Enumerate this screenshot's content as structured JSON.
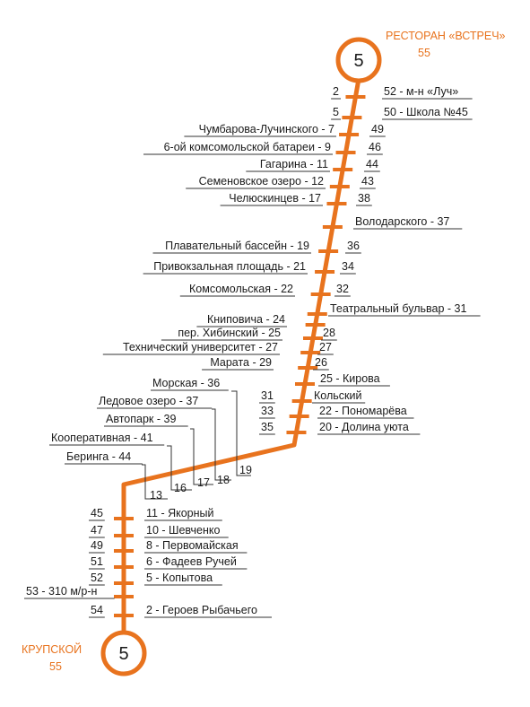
{
  "colors": {
    "route": "#e8731e",
    "text": "#1a1a1a",
    "terminal_text": "#e8731e"
  },
  "route_number": "5",
  "terminals": {
    "top": {
      "name": "РЕСТОРАН «ВСТРЕЧ»",
      "number": "55"
    },
    "bottom": {
      "name": "КРУПСКОЙ",
      "number": "55"
    }
  },
  "stops": [
    {
      "outbound": "2",
      "inbound": "52 - м-н «Луч»"
    },
    {
      "outbound": "5",
      "inbound": "50 - Школа №45"
    },
    {
      "outbound": "Чумбарова-Лучинского - 7",
      "inbound": "49"
    },
    {
      "outbound": "6-ой комсомольской батареи - 9",
      "inbound": "46"
    },
    {
      "outbound": "Гагарина - 11",
      "inbound": "44"
    },
    {
      "outbound": "Семеновское озеро - 12",
      "inbound": "43"
    },
    {
      "outbound": "Челюскинцев - 17",
      "inbound": "38"
    },
    {
      "outbound": "",
      "inbound": "Володарского - 37"
    },
    {
      "outbound": "Плавательный бассейн - 19",
      "inbound": "36"
    },
    {
      "outbound": "Привокзальная площадь - 21",
      "inbound": "34"
    },
    {
      "outbound": "Комсомольская - 22",
      "inbound": "32"
    },
    {
      "outbound": "",
      "inbound": "Театральный бульвар - 31"
    },
    {
      "outbound": "Книповича - 24",
      "inbound": ""
    },
    {
      "outbound": "пер. Хибинский - 25",
      "inbound": "28"
    },
    {
      "outbound": "Технический университет - 27",
      "inbound": "27"
    },
    {
      "outbound": "Марата - 29",
      "inbound": "26"
    },
    {
      "outbound": "",
      "inbound": "25 - Кирова"
    },
    {
      "outbound": "31",
      "inbound": "Кольский"
    },
    {
      "outbound": "33",
      "inbound": "22 - Пономарёва"
    },
    {
      "outbound": "35",
      "inbound": "20 - Долина уюта"
    },
    {
      "outbound": "Морская - 36",
      "inbound": "19"
    },
    {
      "outbound": "Ледовое озеро - 37",
      "inbound": "18"
    },
    {
      "outbound": "Автопарк - 39",
      "inbound": "17"
    },
    {
      "outbound": "Кооперативная - 41",
      "inbound": "16"
    },
    {
      "outbound": "Беринга - 44",
      "inbound": "13"
    },
    {
      "outbound": "45",
      "inbound": "11 - Якорный"
    },
    {
      "outbound": "47",
      "inbound": "10 - Шевченко"
    },
    {
      "outbound": "49",
      "inbound": "8 - Первомайская"
    },
    {
      "outbound": "51",
      "inbound": "6 - Фадеев Ручей"
    },
    {
      "outbound": "52",
      "inbound": "5 - Копытова"
    },
    {
      "outbound": "53 - 310 м/р-н",
      "inbound": ""
    },
    {
      "outbound": "54",
      "inbound": "2 - Героев Рыбачьего"
    }
  ]
}
